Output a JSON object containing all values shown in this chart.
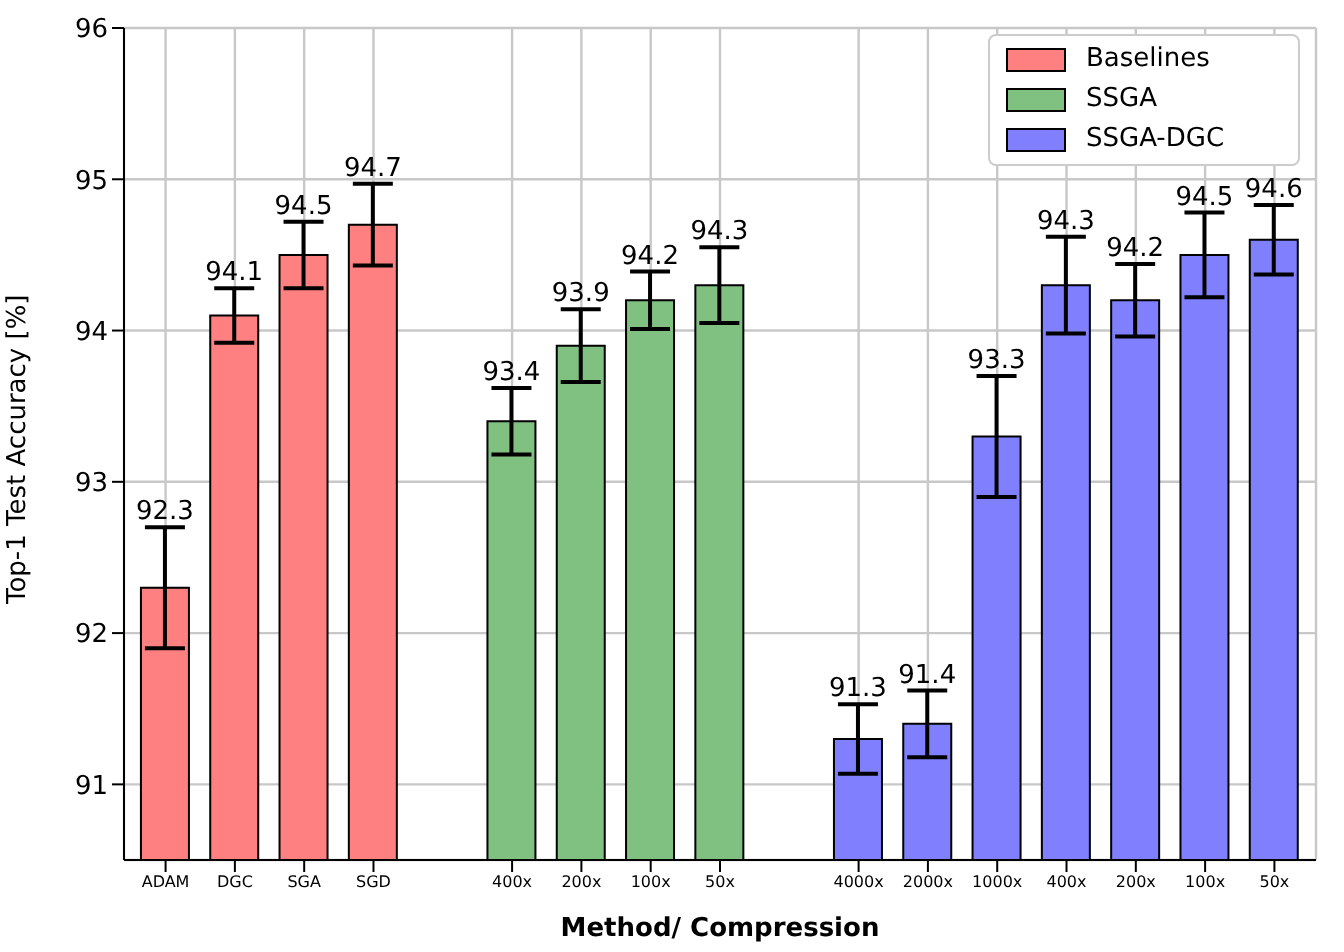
{
  "chart_data": {
    "type": "bar",
    "categories": [
      "ADAM",
      "DGC",
      "SGA",
      "SGD",
      "400x",
      "200x",
      "100x",
      "50x",
      "4000x",
      "2000x",
      "1000x",
      "400x",
      "200x",
      "100x",
      "50x"
    ],
    "series": [
      {
        "name": "Baselines",
        "color": "#ff8080",
        "values": [
          92.3,
          94.1,
          94.5,
          94.7,
          null,
          null,
          null,
          null,
          null,
          null,
          null,
          null,
          null,
          null,
          null
        ],
        "errors": [
          0.4,
          0.18,
          0.22,
          0.27,
          null,
          null,
          null,
          null,
          null,
          null,
          null,
          null,
          null,
          null,
          null
        ]
      },
      {
        "name": "SSGA",
        "color": "#80c080",
        "values": [
          null,
          null,
          null,
          null,
          93.4,
          93.9,
          94.2,
          94.3,
          null,
          null,
          null,
          null,
          null,
          null,
          null
        ],
        "errors": [
          null,
          null,
          null,
          null,
          0.22,
          0.24,
          0.19,
          0.25,
          null,
          null,
          null,
          null,
          null,
          null,
          null
        ]
      },
      {
        "name": "SSGA-DGC",
        "color": "#8080ff",
        "values": [
          null,
          null,
          null,
          null,
          null,
          null,
          null,
          null,
          91.3,
          91.4,
          93.3,
          94.3,
          94.2,
          94.5,
          94.6
        ],
        "errors": [
          null,
          null,
          null,
          null,
          null,
          null,
          null,
          null,
          0.23,
          0.22,
          0.4,
          0.32,
          0.24,
          0.28,
          0.23
        ]
      }
    ],
    "xlabel": "Method/ Compression",
    "ylabel": "Top-1 Test Accuracy [%]",
    "ylim": [
      90.5,
      96
    ],
    "yticks": [
      91,
      92,
      93,
      94,
      95,
      96
    ],
    "grid": true,
    "legend": "top right",
    "data_labels": true
  }
}
